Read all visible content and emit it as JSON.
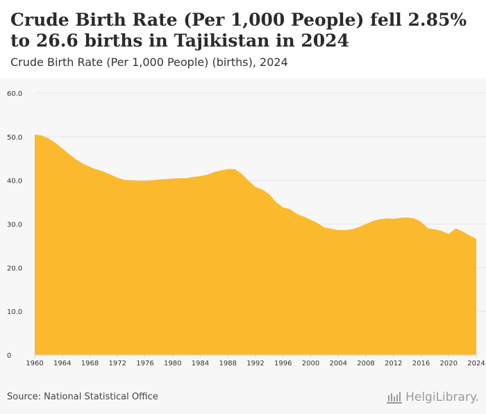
{
  "header": {
    "title": "Crude Birth Rate (Per 1,000 People) fell 2.85% to 26.6 births in Tajikistan in 2024",
    "subtitle": "Crude Birth Rate (Per 1,000 People) (births), 2024"
  },
  "footer": {
    "source": "Source: National Statistical Office",
    "brand": "HelgiLibrary."
  },
  "colors": {
    "area": "#fbb92e",
    "grid": "#e4e4e4",
    "axis_text": "#333333",
    "background": "#f7f7f7"
  },
  "chart_data": {
    "type": "area",
    "title": "Crude Birth Rate (Per 1,000 People) fell 2.85% to 26.6 births in Tajikistan in 2024",
    "subtitle": "Crude Birth Rate (Per 1,000 People) (births), 2024",
    "xlabel": "",
    "ylabel": "",
    "ylim": [
      0,
      60
    ],
    "xlim": [
      1960,
      2024
    ],
    "y_ticks": [
      "0",
      "10.0",
      "20.0",
      "30.0",
      "40.0",
      "50.0",
      "60.0"
    ],
    "x_ticks": [
      "1960",
      "1964",
      "1968",
      "1972",
      "1976",
      "1980",
      "1984",
      "1988",
      "1992",
      "1996",
      "2000",
      "2004",
      "2008",
      "2012",
      "2016",
      "2020",
      "2024"
    ],
    "grid": true,
    "legend": "none",
    "x": [
      1960,
      1961,
      1962,
      1963,
      1964,
      1965,
      1966,
      1967,
      1968,
      1969,
      1970,
      1971,
      1972,
      1973,
      1974,
      1975,
      1976,
      1977,
      1978,
      1979,
      1980,
      1981,
      1982,
      1983,
      1984,
      1985,
      1986,
      1987,
      1988,
      1989,
      1990,
      1991,
      1992,
      1993,
      1994,
      1995,
      1996,
      1997,
      1998,
      1999,
      2000,
      2001,
      2002,
      2003,
      2004,
      2005,
      2006,
      2007,
      2008,
      2009,
      2010,
      2011,
      2012,
      2013,
      2014,
      2015,
      2016,
      2017,
      2018,
      2019,
      2020,
      2021,
      2022,
      2023,
      2024
    ],
    "values": [
      50.5,
      50.3,
      49.6,
      48.6,
      47.3,
      46.0,
      44.8,
      43.8,
      43.1,
      42.5,
      42.0,
      41.3,
      40.6,
      40.1,
      40.0,
      39.9,
      39.9,
      40.0,
      40.2,
      40.3,
      40.4,
      40.5,
      40.5,
      40.8,
      41.0,
      41.3,
      41.9,
      42.3,
      42.6,
      42.6,
      41.5,
      39.9,
      38.5,
      37.9,
      36.8,
      35.0,
      33.8,
      33.4,
      32.3,
      31.7,
      31.0,
      30.2,
      29.2,
      28.9,
      28.6,
      28.6,
      28.8,
      29.3,
      30.0,
      30.7,
      31.1,
      31.3,
      31.2,
      31.4,
      31.5,
      31.3,
      30.5,
      29.0,
      28.8,
      28.4,
      27.7,
      29.0,
      28.3,
      27.4,
      26.6
    ]
  }
}
